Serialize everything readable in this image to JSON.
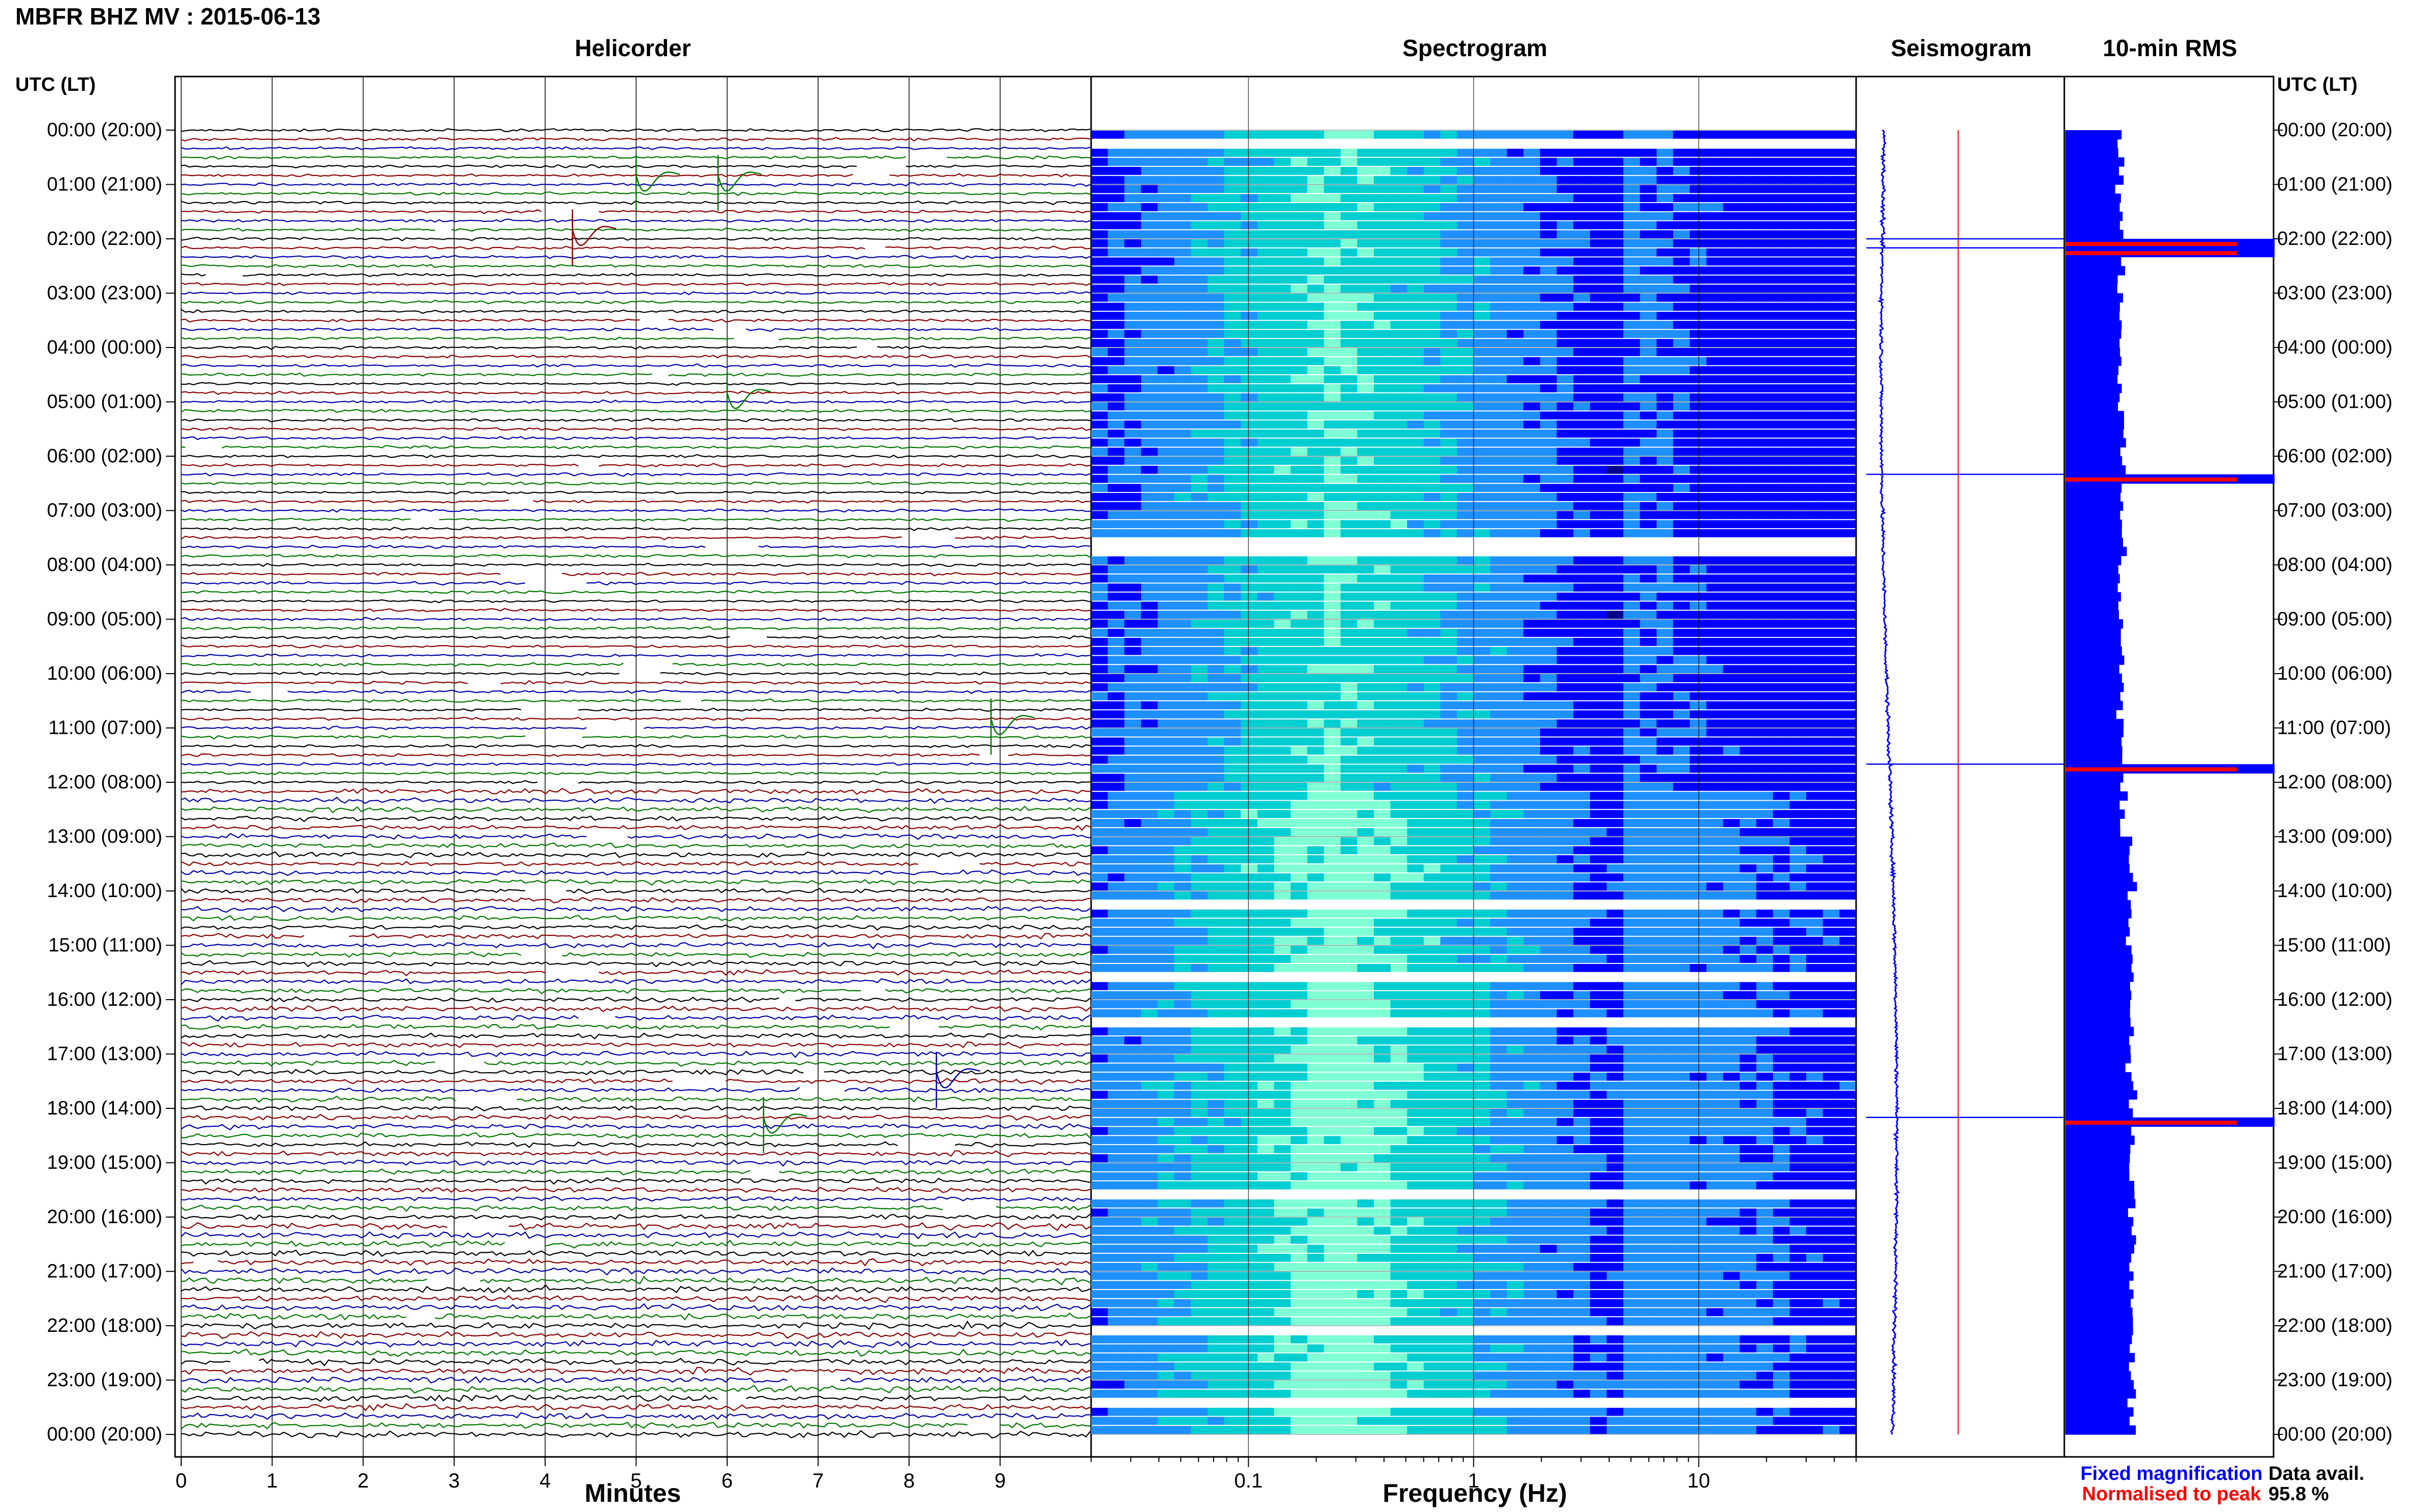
{
  "header": {
    "title": "MBFR BHZ MV : 2015-06-13",
    "utc_label_left": "UTC (LT)",
    "utc_label_right": "UTC (LT)"
  },
  "panels": {
    "helicorder": "Helicorder",
    "spectrogram": "Spectrogram",
    "seismogram": "Seismogram",
    "rms": "10-min RMS"
  },
  "axes": {
    "minutes_label": "Minutes",
    "frequency_label": "Frequency (Hz)",
    "minute_ticks": [
      "0",
      "1",
      "2",
      "3",
      "4",
      "5",
      "6",
      "7",
      "8",
      "9"
    ],
    "frequency_ticks": [
      "0.1",
      "1",
      "10"
    ]
  },
  "hour_labels": [
    "00:00 (20:00)",
    "01:00 (21:00)",
    "02:00 (22:00)",
    "03:00 (23:00)",
    "04:00 (00:00)",
    "05:00 (01:00)",
    "06:00 (02:00)",
    "07:00 (03:00)",
    "08:00 (04:00)",
    "09:00 (05:00)",
    "10:00 (06:00)",
    "11:00 (07:00)",
    "12:00 (08:00)",
    "13:00 (09:00)",
    "14:00 (10:00)",
    "15:00 (11:00)",
    "16:00 (12:00)",
    "17:00 (13:00)",
    "18:00 (14:00)",
    "19:00 (15:00)",
    "20:00 (16:00)",
    "21:00 (17:00)",
    "22:00 (18:00)",
    "23:00 (19:00)",
    "00:00 (20:00)"
  ],
  "legend": {
    "fixed": "Fixed magnification",
    "normalised": "Normalised to peak",
    "fixed_color": "#0000ff",
    "normalised_color": "#ff0000"
  },
  "availability": {
    "label": "Data avail.",
    "value": "95.8 %"
  },
  "colors": {
    "trace_cycle": [
      "#000000",
      "#8b0000",
      "#0000aa",
      "#007700"
    ],
    "rms_bar": "#0000ff",
    "rms_peak": "#ff0000",
    "spectrogram_scale": [
      "#00008b",
      "#0000ff",
      "#1e90ff",
      "#00ced1",
      "#7fffd4",
      "#ffff00"
    ]
  },
  "chart_data": {
    "type": "heatmap",
    "station": "MBFR",
    "channel": "BHZ",
    "network": "MV",
    "date": "2015-06-13",
    "helicorder": {
      "x_unit": "Minutes",
      "xlim": [
        0,
        10
      ],
      "row_minutes": 10,
      "rows_per_hour": 6,
      "hours": 24,
      "events": [
        {
          "utc": "00:50",
          "minute": 5.0
        },
        {
          "utc": "00:50",
          "minute": 5.9
        },
        {
          "utc": "01:50",
          "minute": 4.3
        },
        {
          "utc": "04:50",
          "minute": 6.0
        },
        {
          "utc": "10:50",
          "minute": 8.9
        },
        {
          "utc": "17:20",
          "minute": 8.3
        },
        {
          "utc": "18:10",
          "minute": 6.4
        }
      ]
    },
    "spectrogram": {
      "x_unit": "Hz",
      "x_scale": "log",
      "xlim": [
        0.02,
        50
      ],
      "peak_band_hz": 0.25
    },
    "rms": {
      "interval_minutes": 10,
      "scale": "linear",
      "peaks_utc": [
        "02:00",
        "02:10",
        "06:20",
        "11:40",
        "18:10"
      ]
    },
    "data_availability_percent": 95.8
  }
}
